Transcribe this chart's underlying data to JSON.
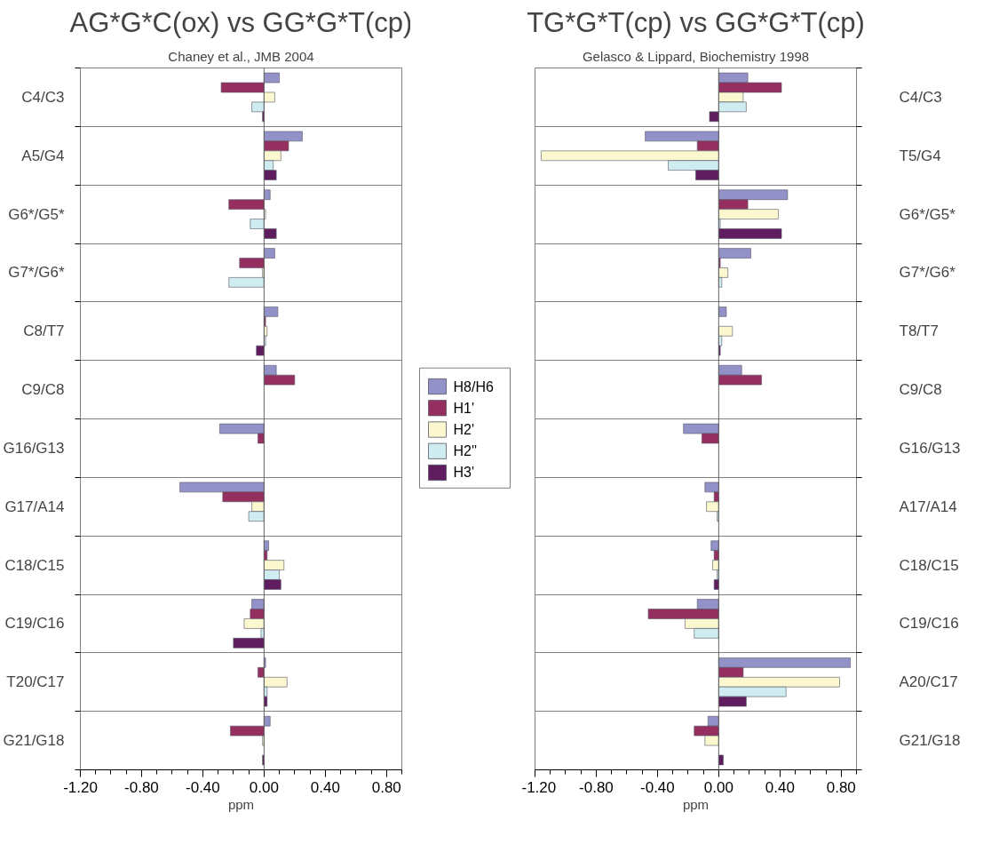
{
  "chart_data": [
    {
      "type": "bar",
      "orientation": "horizontal",
      "title": "AG*G*C(ox) vs GG*G*T(cp)",
      "subtitle": "Chaney et al., JMB 2004",
      "xlabel": "ppm",
      "categories": [
        "C4/C3",
        "A5/G4",
        "G6*/G5*",
        "G7*/G6*",
        "C8/T7",
        "C9/C8",
        "G16/G13",
        "G17/A14",
        "C18/C15",
        "C19/C16",
        "T20/C17",
        "G21/G18"
      ],
      "series": [
        {
          "name": "H8/H6",
          "color": "#9292c8",
          "values": [
            0.1,
            0.25,
            0.04,
            0.07,
            0.09,
            0.08,
            -0.29,
            -0.55,
            0.03,
            -0.08,
            0.01,
            0.04
          ]
        },
        {
          "name": "H1'",
          "color": "#952f5f",
          "values": [
            -0.28,
            0.16,
            -0.23,
            -0.16,
            0.01,
            0.2,
            -0.04,
            -0.27,
            0.02,
            -0.09,
            -0.04,
            -0.22
          ]
        },
        {
          "name": "H2'",
          "color": "#fbf8cf",
          "values": [
            0.07,
            0.11,
            0.01,
            -0.01,
            0.02,
            null,
            null,
            -0.08,
            0.13,
            -0.13,
            0.15,
            -0.01
          ]
        },
        {
          "name": "H2''",
          "color": "#cfecf0",
          "values": [
            -0.08,
            0.06,
            -0.09,
            -0.23,
            0.01,
            null,
            null,
            -0.1,
            0.1,
            -0.02,
            0.02,
            null
          ]
        },
        {
          "name": "H3'",
          "color": "#5f1c5f",
          "values": [
            -0.01,
            0.08,
            0.08,
            null,
            -0.05,
            null,
            null,
            null,
            0.11,
            -0.2,
            0.02,
            -0.01
          ]
        }
      ],
      "xlim": [
        -1.2,
        0.9
      ],
      "xticks": [
        {
          "value": -1.2,
          "label": "-1.20"
        },
        {
          "value": -0.8,
          "label": "-0.80"
        },
        {
          "value": -0.4,
          "label": "-0.40"
        },
        {
          "value": 0,
          "label": "0.00"
        },
        {
          "value": 0.4,
          "label": "0.40"
        },
        {
          "value": 0.8,
          "label": "0.80"
        }
      ],
      "grid": "y",
      "legend": "right"
    },
    {
      "type": "bar",
      "orientation": "horizontal",
      "title": "TG*G*T(cp) vs GG*G*T(cp)",
      "subtitle": "Gelasco & Lippard, Biochemistry 1998",
      "xlabel": "ppm",
      "categories": [
        "C4/C3",
        "T5/G4",
        "G6*/G5*",
        "G7*/G6*",
        "T8/T7",
        "C9/C8",
        "G16/G13",
        "A17/A14",
        "C18/C15",
        "C19/C16",
        "A20/C17",
        "G21/G18"
      ],
      "series": [
        {
          "color": "#9292c8",
          "values": [
            0.19,
            -0.48,
            0.45,
            0.21,
            0.05,
            0.15,
            -0.23,
            -0.09,
            -0.05,
            -0.14,
            0.86,
            -0.07
          ]
        },
        {
          "color": "#952f5f",
          "values": [
            0.41,
            -0.14,
            0.19,
            0.01,
            null,
            0.28,
            -0.11,
            -0.03,
            -0.03,
            -0.46,
            0.16,
            -0.16
          ]
        },
        {
          "color": "#fbf8cf",
          "values": [
            0.16,
            -1.16,
            0.39,
            0.06,
            0.09,
            null,
            null,
            -0.08,
            -0.04,
            -0.22,
            0.79,
            -0.09
          ]
        },
        {
          "color": "#cfecf0",
          "values": [
            0.18,
            -0.33,
            0.01,
            0.02,
            0.02,
            null,
            null,
            -0.01,
            -0.01,
            -0.16,
            0.44,
            null
          ]
        },
        {
          "color": "#5f1c5f",
          "values": [
            -0.06,
            -0.15,
            0.41,
            null,
            0.01,
            null,
            null,
            null,
            -0.03,
            null,
            0.18,
            0.03
          ]
        }
      ],
      "xlim": [
        -1.2,
        0.9
      ],
      "xticks": [
        {
          "value": -1.2,
          "label": "-1.20"
        },
        {
          "value": -0.8,
          "label": "-0.80"
        },
        {
          "value": -0.4,
          "label": "-0.40"
        },
        {
          "value": 0,
          "label": "0.00"
        },
        {
          "value": 0.4,
          "label": "0.40"
        },
        {
          "value": 0.8,
          "label": "0.80"
        }
      ],
      "grid": "y"
    }
  ]
}
